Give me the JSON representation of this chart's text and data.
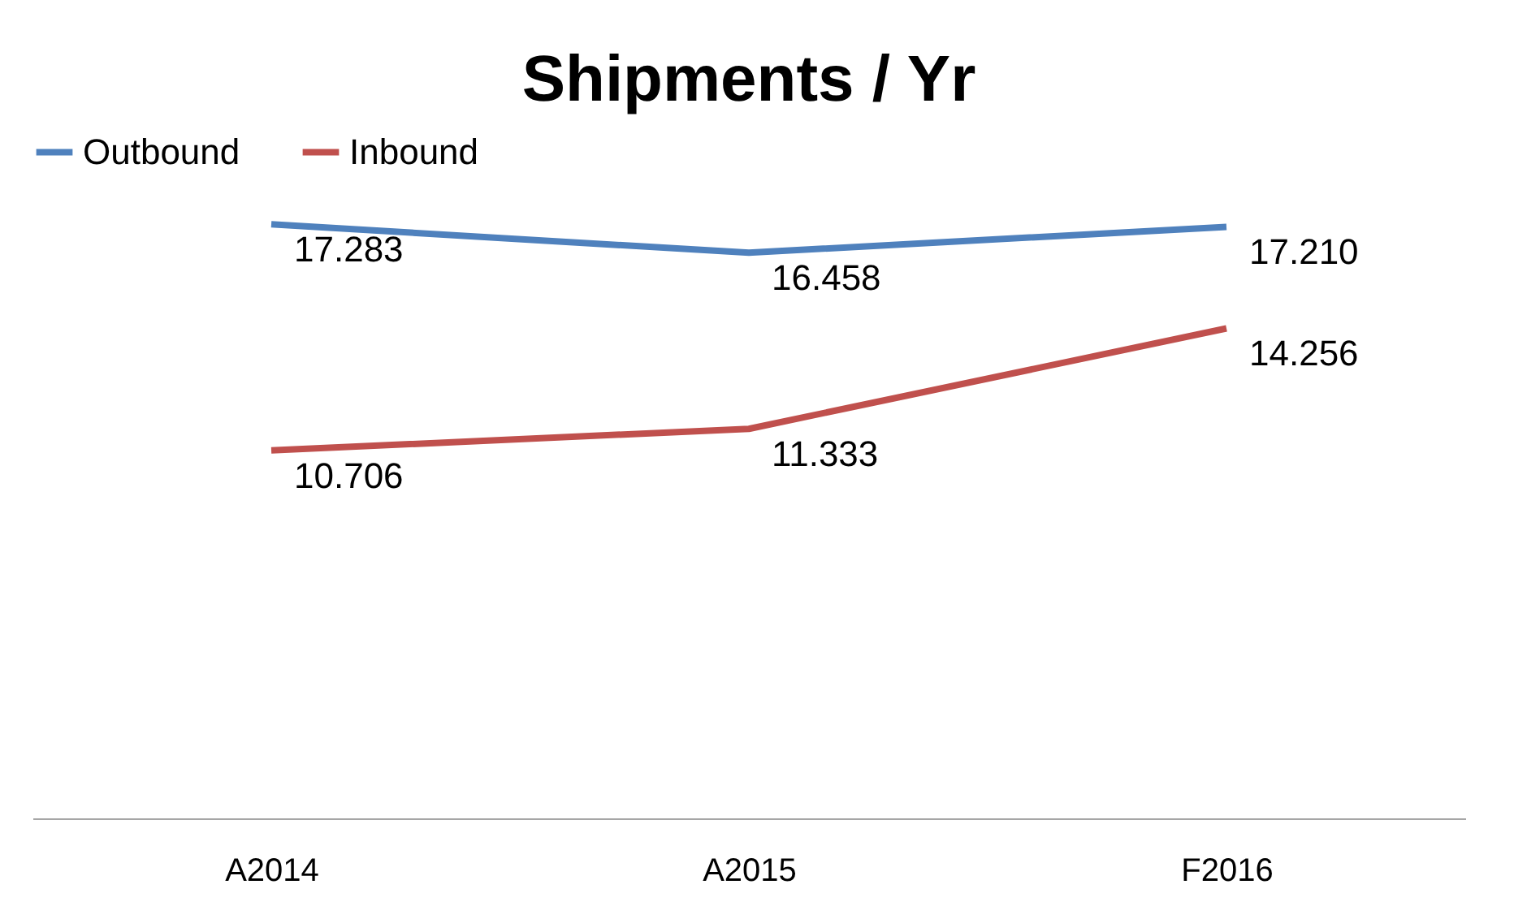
{
  "chart_data": {
    "type": "line",
    "title": "Shipments / Yr",
    "categories": [
      "A2014",
      "A2015",
      "F2016"
    ],
    "series": [
      {
        "name": "Outbound",
        "color": "#4f81bd",
        "values": [
          17.283,
          16.458,
          17.21
        ],
        "value_labels": [
          "17.283",
          "16.458",
          "17.210"
        ]
      },
      {
        "name": "Inbound",
        "color": "#c0504d",
        "values": [
          10.706,
          11.333,
          14.256
        ],
        "value_labels": [
          "10.706",
          "11.333",
          "14.256"
        ]
      }
    ],
    "tick_labels": "x",
    "grid": false,
    "legend": "top",
    "marker": "none",
    "line_style": "solid"
  }
}
